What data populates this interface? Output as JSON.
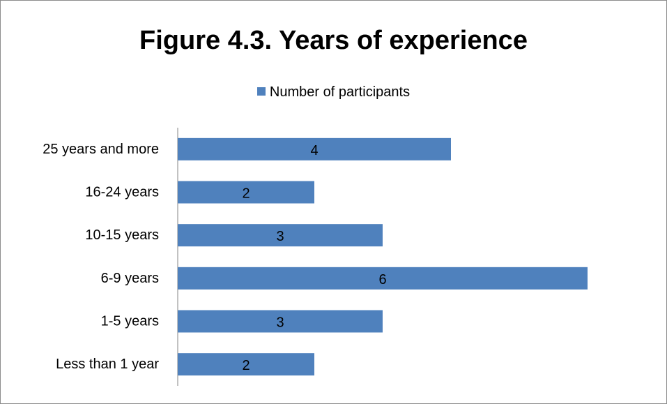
{
  "chart_data": {
    "type": "bar",
    "orientation": "horizontal",
    "title": "Figure 4.3. Years of experience",
    "categories": [
      "25 years and more",
      "16-24 years",
      "10-15 years",
      "6-9 years",
      "1-5 years",
      "Less than 1 year"
    ],
    "series": [
      {
        "name": "Number of participants",
        "values": [
          4,
          2,
          3,
          6,
          3,
          2
        ],
        "color": "#4f81bd"
      }
    ],
    "xlim": [
      0,
      6
    ],
    "xlabel": "",
    "ylabel": "",
    "grid": false,
    "legend_position": "top",
    "data_labels": true
  }
}
